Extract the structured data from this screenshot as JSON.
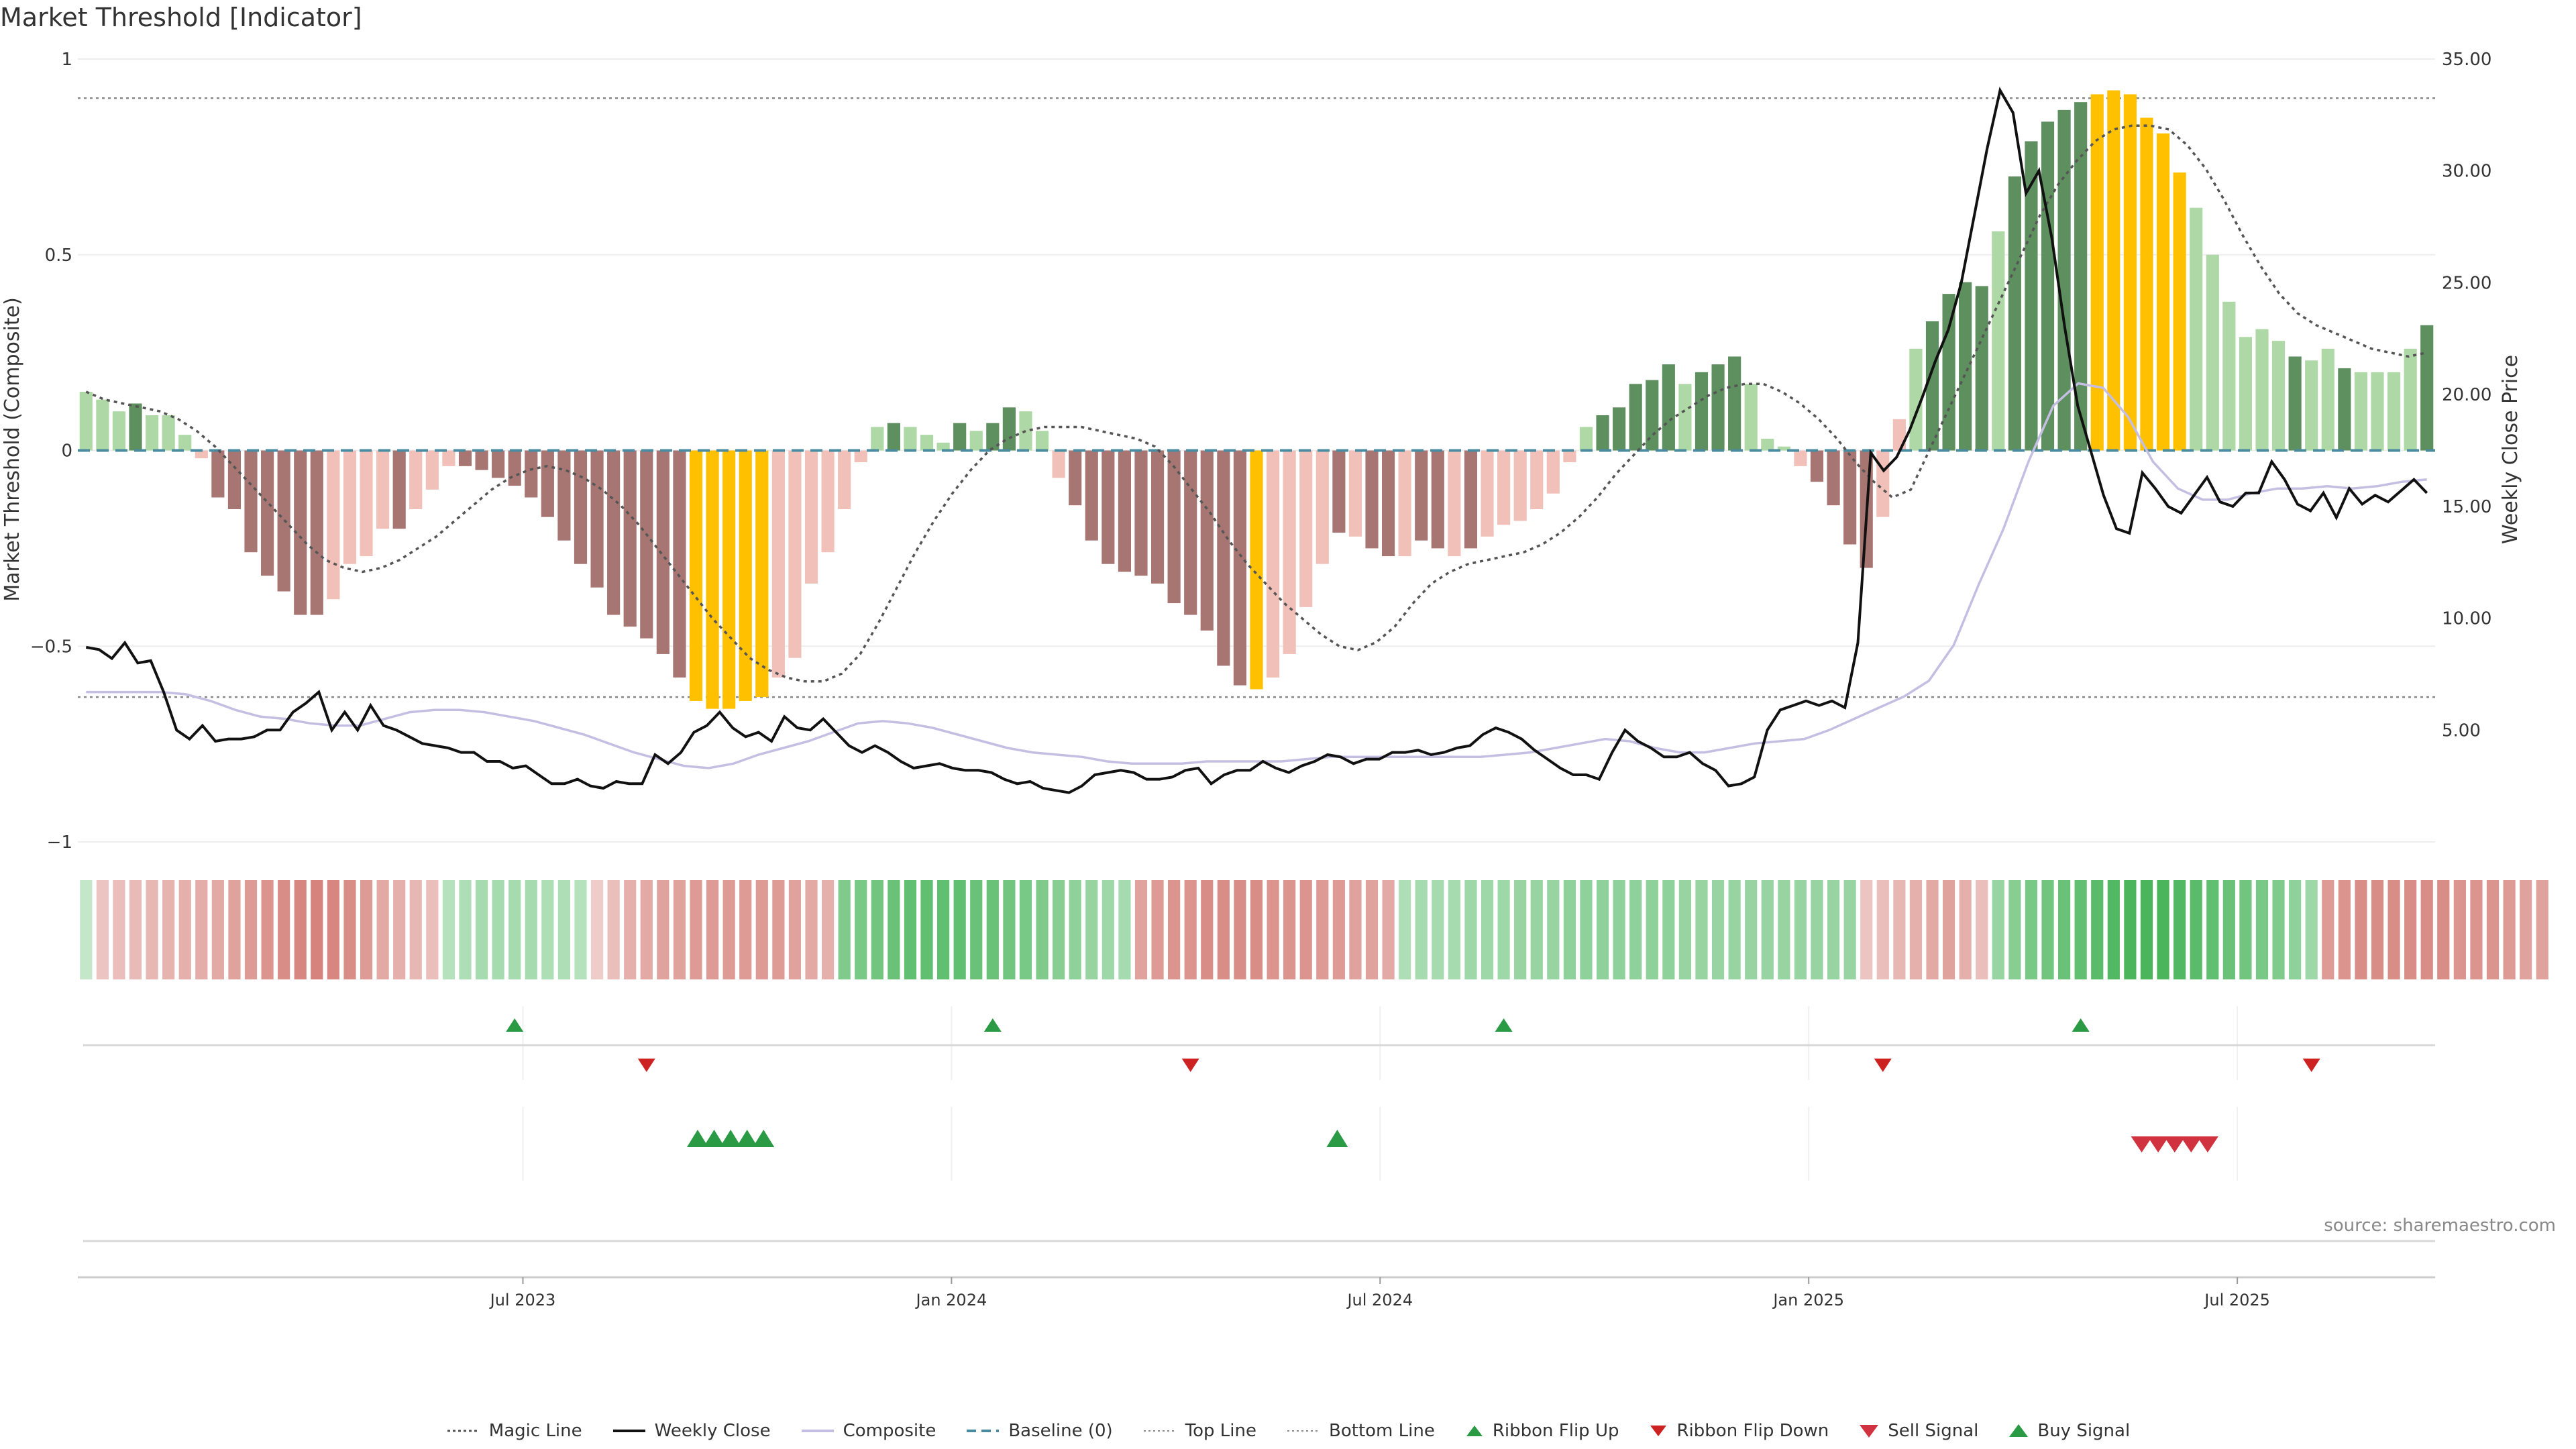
{
  "title": "Market Threshold [Indicator]",
  "source": "source: sharemaestro.com",
  "legend": [
    {
      "key": "magic",
      "label": "Magic Line"
    },
    {
      "key": "close",
      "label": "Weekly Close"
    },
    {
      "key": "composite",
      "label": "Composite"
    },
    {
      "key": "baseline",
      "label": "Baseline (0)"
    },
    {
      "key": "top",
      "label": "Top Line"
    },
    {
      "key": "bottom",
      "label": "Bottom Line"
    },
    {
      "key": "flipup",
      "label": "Ribbon Flip Up"
    },
    {
      "key": "flipdown",
      "label": "Ribbon Flip Down"
    },
    {
      "key": "sell",
      "label": "Sell Signal"
    },
    {
      "key": "buy",
      "label": "Buy Signal"
    }
  ],
  "colors": {
    "dark_green": "#5e8f5e",
    "light_green": "#aed8a5",
    "dark_red": "#a87672",
    "light_red": "#f0c0b9",
    "gold": "#ffc000",
    "close": "#111111",
    "composite": "#c4bfe2",
    "baseline": "#4a8ba0",
    "magic": "#555555",
    "guide": "#888888",
    "signal_green": "#2a9a45",
    "signal_red": "#d0333f",
    "flip_red": "#cc2222"
  },
  "chart_data": {
    "type": "bar",
    "title": "Market Threshold [Indicator]",
    "ylabel": "Market Threshold (Composite)",
    "y2label": "Weekly Close Price",
    "ylim": [
      -1,
      1
    ],
    "y2lim": [
      0,
      35
    ],
    "yticks": [
      1,
      0.5,
      0,
      -0.5,
      -1
    ],
    "ytick_labels": [
      "1",
      "0.5",
      "0",
      "−0.5",
      "−1"
    ],
    "y2ticks": [
      35,
      30,
      25,
      20,
      15,
      10,
      5
    ],
    "y2tick_labels": [
      "35.00",
      "30.00",
      "25.00",
      "20.00",
      "15.00",
      "10.00",
      "5.00"
    ],
    "top_line": 0.9,
    "bottom_line": -0.63,
    "baseline": 0,
    "xticks": [
      {
        "week": 27,
        "label": "Jul 2023"
      },
      {
        "week": 53,
        "label": "Jan 2024"
      },
      {
        "week": 79,
        "label": "Jul 2024"
      },
      {
        "week": 105,
        "label": "Jan 2025"
      },
      {
        "week": 131,
        "label": "Jul 2025"
      }
    ],
    "composite_bars": [
      0.15,
      0.13,
      0.1,
      0.12,
      0.09,
      0.09,
      0.04,
      -0.02,
      -0.12,
      -0.15,
      -0.26,
      -0.32,
      -0.36,
      -0.42,
      -0.42,
      -0.38,
      -0.29,
      -0.27,
      -0.2,
      -0.2,
      -0.15,
      -0.1,
      -0.04,
      -0.04,
      -0.05,
      -0.07,
      -0.09,
      -0.12,
      -0.17,
      -0.23,
      -0.29,
      -0.35,
      -0.42,
      -0.45,
      -0.48,
      -0.52,
      -0.58,
      -0.64,
      -0.66,
      -0.66,
      -0.64,
      -0.63,
      -0.58,
      -0.53,
      -0.34,
      -0.26,
      -0.15,
      -0.03,
      0.06,
      0.07,
      0.06,
      0.04,
      0.02,
      0.07,
      0.05,
      0.07,
      0.11,
      0.1,
      0.05,
      -0.07,
      -0.14,
      -0.23,
      -0.29,
      -0.31,
      -0.32,
      -0.34,
      -0.39,
      -0.42,
      -0.46,
      -0.55,
      -0.6,
      -0.61,
      -0.58,
      -0.52,
      -0.4,
      -0.29,
      -0.21,
      -0.22,
      -0.25,
      -0.27,
      -0.27,
      -0.23,
      -0.25,
      -0.27,
      -0.25,
      -0.22,
      -0.19,
      -0.18,
      -0.15,
      -0.11,
      -0.03,
      0.06,
      0.09,
      0.11,
      0.17,
      0.18,
      0.22,
      0.17,
      0.2,
      0.22,
      0.24,
      0.17,
      0.03,
      0.01,
      -0.04,
      -0.08,
      -0.14,
      -0.24,
      -0.3,
      -0.17,
      0.08,
      0.26,
      0.33,
      0.4,
      0.43,
      0.42,
      0.56,
      0.7,
      0.79,
      0.84,
      0.87,
      0.89,
      0.91,
      0.92,
      0.91,
      0.85,
      0.81,
      0.71,
      0.62,
      0.5,
      0.38,
      0.29,
      0.31,
      0.28,
      0.24,
      0.23,
      0.26,
      0.21,
      0.2,
      0.2,
      0.2,
      0.26,
      0.32
    ],
    "bar_color_classes": [
      "lg",
      "lg",
      "lg",
      "dg",
      "lg",
      "lg",
      "lg",
      "lr",
      "dr",
      "dr",
      "dr",
      "dr",
      "dr",
      "dr",
      "dr",
      "lr",
      "lr",
      "lr",
      "lr",
      "dr",
      "lr",
      "lr",
      "lr",
      "dr",
      "dr",
      "dr",
      "dr",
      "dr",
      "dr",
      "dr",
      "dr",
      "dr",
      "dr",
      "dr",
      "dr",
      "dr",
      "dr",
      "gold",
      "gold",
      "gold",
      "gold",
      "gold",
      "lr",
      "lr",
      "lr",
      "lr",
      "lr",
      "lr",
      "lg",
      "dg",
      "lg",
      "lg",
      "lg",
      "dg",
      "lg",
      "dg",
      "dg",
      "lg",
      "lg",
      "lr",
      "dr",
      "dr",
      "dr",
      "dr",
      "dr",
      "dr",
      "dr",
      "dr",
      "dr",
      "dr",
      "dr",
      "gold",
      "lr",
      "lr",
      "lr",
      "lr",
      "dr",
      "lr",
      "dr",
      "dr",
      "lr",
      "dr",
      "dr",
      "lr",
      "dr",
      "lr",
      "lr",
      "lr",
      "lr",
      "lr",
      "lr",
      "lg",
      "dg",
      "dg",
      "dg",
      "dg",
      "dg",
      "lg",
      "dg",
      "dg",
      "dg",
      "lg",
      "lg",
      "lg",
      "lr",
      "dr",
      "dr",
      "dr",
      "dr",
      "lr",
      "lr",
      "lg",
      "dg",
      "dg",
      "dg",
      "dg",
      "lg",
      "dg",
      "dg",
      "dg",
      "dg",
      "dg",
      "gold",
      "gold",
      "gold",
      "gold",
      "gold",
      "gold",
      "lg",
      "lg",
      "lg",
      "lg",
      "lg",
      "lg",
      "dg",
      "lg",
      "lg",
      "dg",
      "lg",
      "lg",
      "lg",
      "lg",
      "dg",
      "dg"
    ],
    "series": [
      {
        "name": "Weekly Close",
        "axis": "right",
        "values": [
          8.7,
          8.6,
          8.2,
          8.9,
          8.0,
          8.1,
          6.7,
          5.0,
          4.6,
          5.2,
          4.5,
          4.6,
          4.6,
          4.7,
          5.0,
          5.0,
          5.8,
          6.2,
          6.7,
          5.0,
          5.8,
          5.0,
          6.1,
          5.2,
          5.0,
          4.7,
          4.4,
          4.3,
          4.2,
          4.0,
          4.0,
          3.6,
          3.6,
          3.3,
          3.4,
          3.0,
          2.6,
          2.6,
          2.8,
          2.5,
          2.4,
          2.7,
          2.6,
          2.6,
          3.9,
          3.5,
          4.0,
          4.9,
          5.2,
          5.8,
          5.1,
          4.7,
          4.9,
          4.5,
          5.6,
          5.1,
          5.0,
          5.5,
          4.9,
          4.3,
          4.0,
          4.3,
          4.0,
          3.6,
          3.3,
          3.4,
          3.5,
          3.3,
          3.2,
          3.2,
          3.1,
          2.8,
          2.6,
          2.7,
          2.4,
          2.3,
          2.2,
          2.5,
          3.0,
          3.1,
          3.2,
          3.1,
          2.8,
          2.8,
          2.9,
          3.2,
          3.3,
          2.6,
          3.0,
          3.2,
          3.2,
          3.6,
          3.3,
          3.1,
          3.4,
          3.6,
          3.9,
          3.8,
          3.5,
          3.7,
          3.7,
          4.0,
          4.0,
          4.1,
          3.9,
          4.0,
          4.2,
          4.3,
          4.8,
          5.1,
          4.9,
          4.6,
          4.1,
          3.7,
          3.3,
          3.0,
          3.0,
          2.8,
          4.0,
          5.0,
          4.5,
          4.2,
          3.8,
          3.8,
          4.0,
          3.5,
          3.2,
          2.5,
          2.6,
          2.9,
          5.0,
          5.9,
          6.1,
          6.3,
          6.1,
          6.3,
          6.0,
          8.9,
          17.4,
          16.6,
          17.2,
          18.4,
          19.9,
          21.5,
          22.9,
          25.0,
          28.0,
          31.0,
          33.6,
          32.6,
          29.0,
          30.0,
          27.0,
          23.0,
          19.5,
          17.5,
          15.5,
          14.0,
          13.8,
          16.5,
          15.8,
          15.0,
          14.7,
          15.5,
          16.3,
          15.2,
          15.0,
          15.6,
          15.6,
          17.0,
          16.2,
          15.1,
          14.8,
          15.6,
          14.5,
          15.8,
          15.1,
          15.5,
          15.2,
          15.7,
          16.2,
          15.6
        ]
      },
      {
        "name": "Magic Line",
        "axis": "left",
        "values": [
          0.15,
          0.13,
          0.12,
          0.11,
          0.1,
          0.08,
          0.05,
          0.01,
          -0.04,
          -0.09,
          -0.14,
          -0.19,
          -0.24,
          -0.28,
          -0.3,
          -0.31,
          -0.3,
          -0.28,
          -0.25,
          -0.22,
          -0.18,
          -0.14,
          -0.1,
          -0.07,
          -0.05,
          -0.04,
          -0.05,
          -0.07,
          -0.1,
          -0.14,
          -0.19,
          -0.25,
          -0.31,
          -0.37,
          -0.43,
          -0.48,
          -0.53,
          -0.56,
          -0.58,
          -0.59,
          -0.59,
          -0.57,
          -0.52,
          -0.44,
          -0.35,
          -0.26,
          -0.18,
          -0.11,
          -0.05,
          0.0,
          0.03,
          0.05,
          0.06,
          0.06,
          0.06,
          0.05,
          0.04,
          0.03,
          0.01,
          -0.04,
          -0.1,
          -0.16,
          -0.23,
          -0.29,
          -0.34,
          -0.39,
          -0.43,
          -0.47,
          -0.5,
          -0.51,
          -0.49,
          -0.45,
          -0.39,
          -0.34,
          -0.31,
          -0.29,
          -0.28,
          -0.27,
          -0.26,
          -0.24,
          -0.21,
          -0.17,
          -0.12,
          -0.06,
          -0.01,
          0.04,
          0.08,
          0.11,
          0.14,
          0.16,
          0.17,
          0.17,
          0.15,
          0.12,
          0.08,
          0.03,
          -0.03,
          -0.08,
          -0.12,
          -0.1,
          0.0,
          0.1,
          0.2,
          0.3,
          0.4,
          0.5,
          0.6,
          0.68,
          0.74,
          0.79,
          0.82,
          0.83,
          0.83,
          0.82,
          0.78,
          0.72,
          0.64,
          0.55,
          0.47,
          0.4,
          0.35,
          0.32,
          0.3,
          0.28,
          0.26,
          0.25,
          0.24,
          0.25
        ]
      },
      {
        "name": "Composite",
        "axis": "right",
        "values": [
          6.7,
          6.7,
          6.7,
          6.7,
          6.6,
          6.3,
          5.9,
          5.6,
          5.5,
          5.3,
          5.2,
          5.2,
          5.5,
          5.8,
          5.9,
          5.9,
          5.8,
          5.6,
          5.4,
          5.1,
          4.8,
          4.4,
          4.0,
          3.7,
          3.4,
          3.3,
          3.5,
          3.9,
          4.2,
          4.5,
          4.9,
          5.3,
          5.4,
          5.3,
          5.1,
          4.8,
          4.5,
          4.2,
          4.0,
          3.9,
          3.8,
          3.6,
          3.5,
          3.5,
          3.5,
          3.6,
          3.6,
          3.6,
          3.6,
          3.7,
          3.8,
          3.8,
          3.8,
          3.8,
          3.8,
          3.8,
          3.8,
          3.9,
          4.0,
          4.2,
          4.4,
          4.6,
          4.5,
          4.2,
          4.0,
          4.0,
          4.2,
          4.4,
          4.5,
          4.6,
          5.0,
          5.5,
          6.0,
          6.5,
          7.2,
          8.8,
          11.5,
          14.0,
          17.0,
          19.5,
          20.5,
          20.3,
          19.0,
          17.0,
          15.8,
          15.3,
          15.3,
          15.6,
          15.8,
          15.8,
          15.9,
          15.8,
          15.9,
          16.1,
          16.2
        ]
      },
      {
        "name": "Top Line",
        "axis": "left",
        "values": [
          0.9
        ]
      },
      {
        "name": "Bottom Line",
        "axis": "left",
        "values": [
          -0.63
        ]
      },
      {
        "name": "Baseline (0)",
        "axis": "left",
        "values": [
          0
        ]
      }
    ],
    "ribbon_levels": [
      0.1,
      -0.15,
      -0.2,
      -0.22,
      -0.25,
      -0.28,
      -0.3,
      -0.32,
      -0.35,
      -0.4,
      -0.45,
      -0.5,
      -0.55,
      -0.6,
      -0.62,
      -0.6,
      -0.55,
      -0.45,
      -0.35,
      -0.3,
      -0.25,
      -0.2,
      0.2,
      0.25,
      0.3,
      0.3,
      0.3,
      0.3,
      0.25,
      0.25,
      0.2,
      -0.1,
      -0.2,
      -0.3,
      -0.35,
      -0.4,
      -0.4,
      -0.45,
      -0.45,
      -0.45,
      -0.45,
      -0.45,
      -0.45,
      -0.4,
      -0.35,
      -0.3,
      0.55,
      0.6,
      0.65,
      0.7,
      0.75,
      0.75,
      0.75,
      0.75,
      0.7,
      0.7,
      0.65,
      0.6,
      0.55,
      0.5,
      0.45,
      0.4,
      0.35,
      0.3,
      -0.4,
      -0.45,
      -0.5,
      -0.5,
      -0.55,
      -0.55,
      -0.55,
      -0.55,
      -0.5,
      -0.5,
      -0.5,
      -0.45,
      -0.45,
      -0.4,
      -0.4,
      -0.35,
      0.25,
      0.3,
      0.3,
      0.3,
      0.35,
      0.35,
      0.35,
      0.4,
      0.4,
      0.4,
      0.45,
      0.45,
      0.45,
      0.45,
      0.45,
      0.45,
      0.45,
      0.4,
      0.4,
      0.4,
      0.4,
      0.4,
      0.4,
      0.4,
      0.4,
      0.4,
      0.4,
      0.4,
      -0.15,
      -0.2,
      -0.25,
      -0.3,
      -0.35,
      -0.4,
      -0.3,
      -0.2,
      0.4,
      0.5,
      0.6,
      0.65,
      0.7,
      0.75,
      0.8,
      0.85,
      0.9,
      0.9,
      0.9,
      0.85,
      0.8,
      0.75,
      0.7,
      0.65,
      0.6,
      0.55,
      0.45,
      0.35,
      -0.45,
      -0.5,
      -0.55,
      -0.55,
      -0.55,
      -0.55,
      -0.55,
      -0.55,
      -0.5,
      -0.5,
      -0.5,
      -0.45,
      -0.4,
      -0.4
    ],
    "ribbon_flip_up_weeks": [
      26.5,
      55.5,
      86.5,
      121.5
    ],
    "ribbon_flip_down_weeks": [
      34.5,
      67.5,
      109.5,
      135.5
    ],
    "buy_signal_weeks": [
      37.6,
      38.6,
      39.6,
      40.6,
      41.6,
      76.4
    ],
    "sell_signal_weeks": [
      125.2,
      126.2,
      127.2,
      128.2,
      129.2
    ]
  }
}
